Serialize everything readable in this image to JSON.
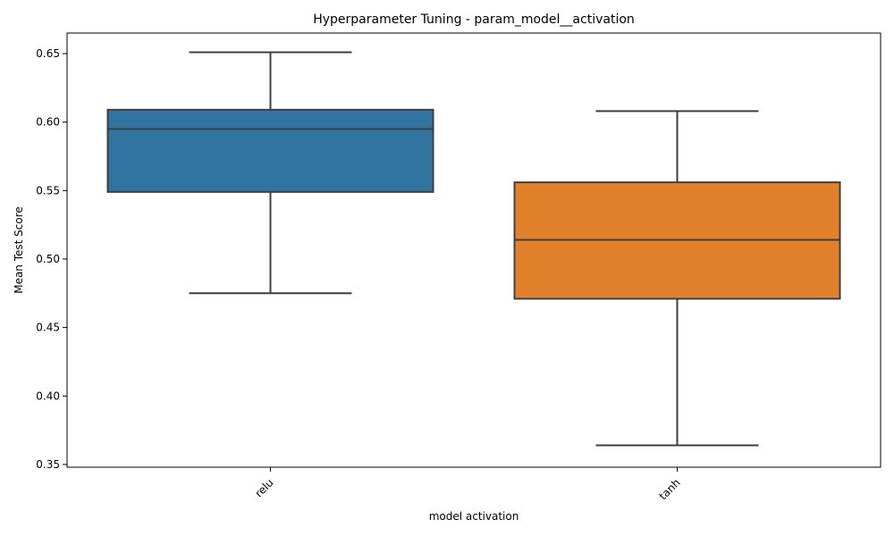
{
  "chart_data": {
    "type": "box",
    "title": "Hyperparameter Tuning - param_model__activation",
    "xlabel": "model activation",
    "ylabel": "Mean Test Score",
    "ylim": [
      0.348,
      0.665
    ],
    "yticks": [
      0.35,
      0.4,
      0.45,
      0.5,
      0.55,
      0.6,
      0.65
    ],
    "ytick_labels": [
      "0.35",
      "0.40",
      "0.45",
      "0.50",
      "0.55",
      "0.60",
      "0.65"
    ],
    "categories": [
      "relu",
      "tanh"
    ],
    "boxes": [
      {
        "category": "relu",
        "whisker_low": 0.475,
        "q1": 0.549,
        "median": 0.595,
        "q3": 0.609,
        "whisker_high": 0.651,
        "color": "#3274a1"
      },
      {
        "category": "tanh",
        "whisker_low": 0.364,
        "q1": 0.471,
        "median": 0.514,
        "q3": 0.556,
        "whisker_high": 0.608,
        "color": "#e1812c"
      }
    ],
    "line_color": "#3f3f3f",
    "grid": false,
    "legend": "none"
  }
}
